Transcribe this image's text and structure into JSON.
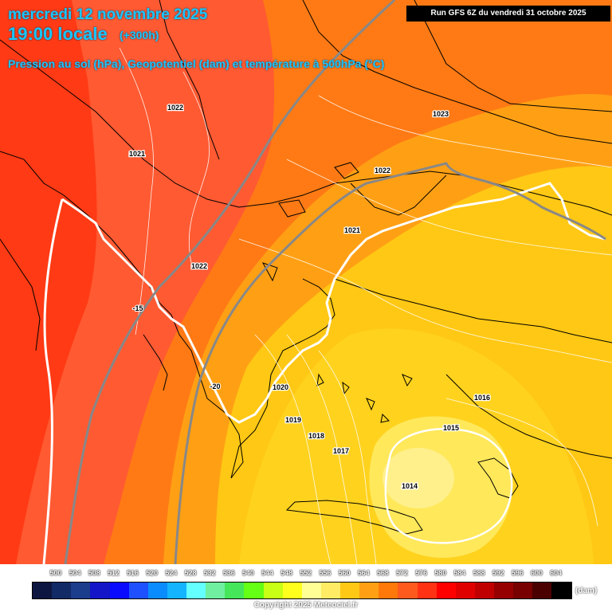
{
  "header": {
    "date": "mercredi 12 novembre 2025",
    "time": "19:00 locale",
    "lead": "(+300h)",
    "subtitle": "Pression au sol (hPa), Geopotentiel (dam) et température à 500hPa (°C)",
    "run": "Run GFS 6Z du vendredi 31 octobre 2025"
  },
  "pressure_labels": [
    "1022",
    "1021",
    "1022",
    "1023",
    "1022",
    "1021",
    "1020",
    "1019",
    "1018",
    "1017",
    "1016",
    "1015",
    "1014"
  ],
  "temperature_labels": [
    "-15",
    "-20"
  ],
  "legend": {
    "values": [
      "500",
      "504",
      "508",
      "512",
      "516",
      "520",
      "524",
      "528",
      "532",
      "536",
      "540",
      "544",
      "548",
      "552",
      "556",
      "560",
      "564",
      "568",
      "572",
      "576",
      "580",
      "584",
      "588",
      "592",
      "596",
      "600",
      "604"
    ],
    "colors": [
      "#0d1640",
      "#122a66",
      "#1c3c8c",
      "#1414c8",
      "#0a0aff",
      "#1e50ff",
      "#0a8cff",
      "#14b4ff",
      "#64ffff",
      "#6fef9f",
      "#46e65a",
      "#64ff14",
      "#c8ff14",
      "#ffff1e",
      "#ffff96",
      "#ffeb64",
      "#ffc814",
      "#ffa014",
      "#ff780a",
      "#ff5a1e",
      "#ff3214",
      "#ff0000",
      "#e10000",
      "#c00000",
      "#960000",
      "#780000",
      "#4b0000",
      "#000000"
    ],
    "unit": "(dam)"
  },
  "copyright": "Copyright 2025 Meteociel.fr"
}
